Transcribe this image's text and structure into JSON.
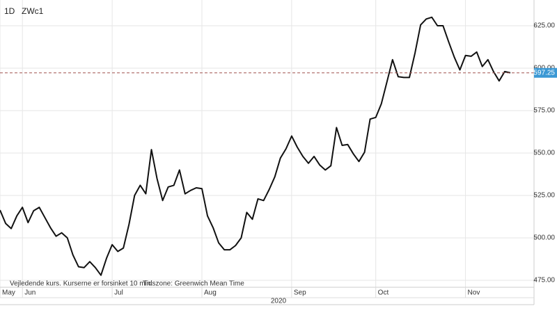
{
  "chart_data": {
    "type": "line",
    "interval": "1D",
    "symbol": "ZWc1",
    "note": "Vejledende kurs. Kurserne er forsinket 10 min.",
    "timezone": "Tidszone: Greenwich Mean Time",
    "year": "2020",
    "categories": [
      "May",
      null,
      null,
      null,
      "Jun",
      null,
      null,
      null,
      null,
      null,
      null,
      null,
      null,
      null,
      null,
      null,
      null,
      null,
      null,
      null,
      "Jul",
      null,
      null,
      null,
      null,
      null,
      null,
      null,
      null,
      null,
      null,
      null,
      null,
      null,
      null,
      null,
      "Aug",
      null,
      null,
      null,
      null,
      null,
      null,
      null,
      null,
      null,
      null,
      null,
      null,
      null,
      null,
      null,
      "Sep",
      null,
      null,
      null,
      null,
      null,
      null,
      null,
      null,
      null,
      null,
      null,
      null,
      null,
      null,
      "Oct",
      null,
      null,
      null,
      null,
      null,
      null,
      null,
      null,
      null,
      null,
      null,
      null,
      null,
      null,
      null,
      "Nov",
      null,
      null,
      null,
      null,
      null,
      null,
      null,
      null
    ],
    "values": [
      516.4,
      508.5,
      505.5,
      513,
      518,
      509,
      516,
      518,
      512,
      506,
      501,
      503,
      500,
      490,
      483,
      482.5,
      486,
      482.5,
      478,
      488,
      496,
      492,
      494,
      508,
      525,
      531,
      526,
      552,
      535,
      522,
      530,
      531,
      540,
      526,
      528,
      529.5,
      529,
      513,
      506,
      497,
      493,
      493,
      495.5,
      500,
      515,
      511,
      523,
      522,
      528.5,
      536,
      547,
      552.5,
      560,
      553.5,
      548,
      544,
      548,
      543,
      540,
      542.5,
      565,
      554.5,
      555,
      549.5,
      545,
      550.5,
      570,
      571,
      579,
      592,
      605,
      595,
      594.5,
      594.5,
      609,
      625.5,
      629,
      630,
      625,
      625,
      615.5,
      606.5,
      599,
      607.5,
      607,
      609.5,
      601,
      605,
      598,
      592.5,
      598,
      597.25
    ],
    "color": "#111111",
    "ylim": [
      470.9,
      636.9
    ],
    "yticks": [
      {
        "value": 475,
        "label": "475.00"
      },
      {
        "value": 500,
        "label": "500.00"
      },
      {
        "value": 525,
        "label": "525.00"
      },
      {
        "value": 550,
        "label": "550.00"
      },
      {
        "value": 575,
        "label": "575.00"
      },
      {
        "value": 600,
        "label": "600.00"
      },
      {
        "value": 625,
        "label": "625.00"
      }
    ],
    "last_price": {
      "value": 597.25,
      "label": "597.25"
    },
    "grid": true
  }
}
